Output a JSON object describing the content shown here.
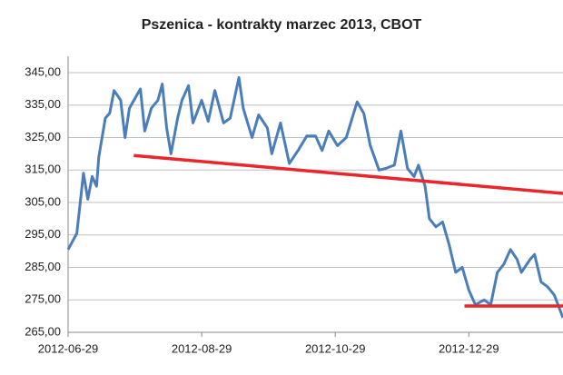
{
  "chart_data": {
    "type": "line",
    "title": "Pszenica - kontrakty marzec 2013, CBOT",
    "xlim": [
      "2012-06-29",
      "2013-02-10"
    ],
    "xticks": [
      "2012-06-29",
      "2012-08-29",
      "2012-10-29",
      "2012-12-29"
    ],
    "ylim": [
      265,
      345
    ],
    "yticks": [
      {
        "value": 265,
        "label": "265,00"
      },
      {
        "value": 275,
        "label": "275,00"
      },
      {
        "value": 285,
        "label": "285,00"
      },
      {
        "value": 295,
        "label": "295,00"
      },
      {
        "value": 305,
        "label": "305,00"
      },
      {
        "value": 315,
        "label": "315,00"
      },
      {
        "value": 325,
        "label": "325,00"
      },
      {
        "value": 335,
        "label": "335,00"
      },
      {
        "value": 345,
        "label": "345,00"
      }
    ],
    "grid": true,
    "series": [
      {
        "color": "#4a7ebb",
        "x": [
          "2012-06-29",
          "2012-07-03",
          "2012-07-06",
          "2012-07-08",
          "2012-07-10",
          "2012-07-12",
          "2012-07-13",
          "2012-07-16",
          "2012-07-18",
          "2012-07-20",
          "2012-07-23",
          "2012-07-25",
          "2012-07-27",
          "2012-08-01",
          "2012-08-03",
          "2012-08-06",
          "2012-08-09",
          "2012-08-11",
          "2012-08-13",
          "2012-08-15",
          "2012-08-18",
          "2012-08-20",
          "2012-08-23",
          "2012-08-25",
          "2012-08-29",
          "2012-09-01",
          "2012-09-04",
          "2012-09-08",
          "2012-09-11",
          "2012-09-15",
          "2012-09-17",
          "2012-09-21",
          "2012-09-24",
          "2012-09-28",
          "2012-09-30",
          "2012-10-04",
          "2012-10-08",
          "2012-10-12",
          "2012-10-16",
          "2012-10-20",
          "2012-10-23",
          "2012-10-26",
          "2012-10-30",
          "2012-11-03",
          "2012-11-08",
          "2012-11-11",
          "2012-11-14",
          "2012-11-18",
          "2012-11-21",
          "2012-11-25",
          "2012-11-28",
          "2012-12-01",
          "2012-12-04",
          "2012-12-06",
          "2012-12-09",
          "2012-12-11",
          "2012-12-14",
          "2012-12-17",
          "2012-12-20",
          "2012-12-23",
          "2012-12-26",
          "2012-12-29",
          "2013-01-01",
          "2013-01-05",
          "2013-01-08",
          "2013-01-11",
          "2013-01-14",
          "2013-01-17",
          "2013-01-20",
          "2013-01-22",
          "2013-01-26",
          "2013-01-28",
          "2013-01-31",
          "2013-02-03",
          "2013-02-06",
          "2013-02-10"
        ],
        "values": [
          290.5,
          295.5,
          314,
          306,
          313,
          310,
          319,
          331,
          332.5,
          339.5,
          336.5,
          325,
          334,
          340,
          327,
          334,
          336.5,
          341.5,
          328,
          320,
          331,
          336.5,
          341,
          329.5,
          336.5,
          330,
          339.5,
          329.5,
          331,
          343.5,
          334,
          325,
          332,
          328,
          320,
          329.5,
          317,
          321,
          325.5,
          325.5,
          321,
          327,
          322.5,
          325,
          336,
          332.5,
          322.5,
          315,
          315.5,
          316.5,
          327,
          315.5,
          313,
          316.5,
          310,
          300,
          297.5,
          299,
          292,
          283.5,
          285,
          278,
          273.5,
          275,
          273.5,
          283.5,
          286,
          290.5,
          287.5,
          283.5,
          287.5,
          289,
          280.5,
          279,
          276.5,
          269.5
        ]
      },
      {
        "color": "#e8262b",
        "x": [
          "2012-07-29",
          "2013-02-10"
        ],
        "values": [
          319.5,
          307.8
        ]
      },
      {
        "color": "#e8262b",
        "x": [
          "2012-12-27",
          "2013-02-10"
        ],
        "values": [
          273.1,
          273.1
        ]
      }
    ]
  }
}
